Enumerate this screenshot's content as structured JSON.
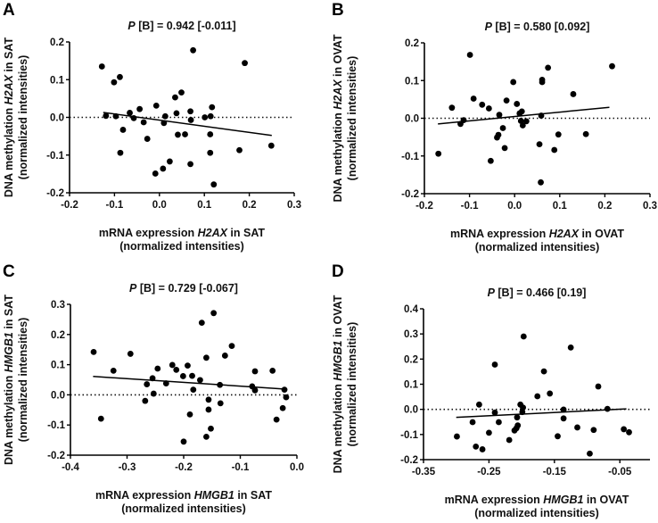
{
  "chart_data": [
    {
      "panel": "A",
      "type": "scatter",
      "title": {
        "p": "P",
        "rest": " [B] = 0.942 [-0.011]"
      },
      "xlabel": [
        "mRNA expression ",
        "H2AX",
        " in SAT"
      ],
      "xlabel2": "(normalized intensities)",
      "ylabel": [
        "DNA methylation ",
        "H2AX",
        " in SAT"
      ],
      "ylabel2": "(normalized intensities)",
      "xlim": [
        -0.2,
        0.3
      ],
      "ylim": [
        -0.2,
        0.2
      ],
      "xticks": [
        -0.2,
        -0.1,
        0.0,
        0.1,
        0.2,
        0.3
      ],
      "xtick_labels": [
        "-0.2",
        "-0.1",
        "0.0",
        "0.1",
        "0.2",
        "0.3"
      ],
      "yticks": [
        -0.2,
        -0.1,
        0.0,
        0.1,
        0.2
      ],
      "ytick_labels": [
        "-0.2",
        "-0.1",
        "0.0",
        "0.1",
        "0.2"
      ],
      "regression": [
        [
          -0.125,
          0.013
        ],
        [
          0.25,
          -0.048
        ]
      ],
      "points": [
        [
          -0.128,
          0.135
        ],
        [
          -0.101,
          0.093
        ],
        [
          -0.088,
          0.107
        ],
        [
          -0.119,
          0.004
        ],
        [
          -0.097,
          0.003
        ],
        [
          -0.066,
          0.012
        ],
        [
          -0.057,
          -0.002
        ],
        [
          -0.081,
          -0.033
        ],
        [
          -0.087,
          -0.094
        ],
        [
          -0.044,
          0.022
        ],
        [
          -0.035,
          -0.013
        ],
        [
          -0.027,
          -0.057
        ],
        [
          -0.007,
          0.031
        ],
        [
          0.013,
          0.003
        ],
        [
          0.01,
          -0.015
        ],
        [
          -0.009,
          -0.149
        ],
        [
          0.008,
          -0.136
        ],
        [
          0.023,
          -0.117
        ],
        [
          0.035,
          0.053
        ],
        [
          0.049,
          0.066
        ],
        [
          0.038,
          0.011
        ],
        [
          0.041,
          -0.046
        ],
        [
          0.057,
          -0.045
        ],
        [
          0.069,
          0.016
        ],
        [
          0.07,
          -0.007
        ],
        [
          0.069,
          -0.124
        ],
        [
          0.075,
          0.178
        ],
        [
          0.101,
          0.0
        ],
        [
          0.114,
          0.003
        ],
        [
          0.117,
          0.027
        ],
        [
          0.113,
          -0.045
        ],
        [
          0.113,
          -0.094
        ],
        [
          0.121,
          -0.178
        ],
        [
          0.178,
          -0.087
        ],
        [
          0.19,
          0.144
        ],
        [
          0.249,
          -0.075
        ]
      ]
    },
    {
      "panel": "B",
      "type": "scatter",
      "title": {
        "p": "P",
        "rest": " [B] = 0.580 [0.092]"
      },
      "xlabel": [
        "mRNA expression ",
        "H2AX",
        " in OVAT"
      ],
      "xlabel2": "(normalized intensities)",
      "ylabel": [
        "DNA methylation ",
        "H2AX",
        " in OVAT"
      ],
      "ylabel2": "(normalized intensities)",
      "xlim": [
        -0.2,
        0.3
      ],
      "ylim": [
        -0.2,
        0.2
      ],
      "xticks": [
        -0.2,
        -0.1,
        0.0,
        0.1,
        0.2,
        0.3
      ],
      "xtick_labels": [
        "-0.2",
        "-0.1",
        "0.0",
        "0.1",
        "0.2",
        "0.3"
      ],
      "yticks": [
        -0.2,
        -0.1,
        0.0,
        0.1,
        0.2
      ],
      "ytick_labels": [
        "-0.2",
        "-0.1",
        "0.0",
        "0.1",
        "0.2"
      ],
      "regression": [
        [
          -0.17,
          -0.015
        ],
        [
          0.21,
          0.029
        ]
      ],
      "points": [
        [
          -0.169,
          -0.094
        ],
        [
          -0.139,
          0.028
        ],
        [
          -0.12,
          -0.015
        ],
        [
          -0.113,
          -0.005
        ],
        [
          -0.099,
          0.168
        ],
        [
          -0.091,
          0.052
        ],
        [
          -0.072,
          0.036
        ],
        [
          -0.057,
          0.026
        ],
        [
          -0.053,
          -0.113
        ],
        [
          -0.034,
          0.009
        ],
        [
          -0.036,
          -0.044
        ],
        [
          -0.039,
          -0.051
        ],
        [
          -0.026,
          -0.026
        ],
        [
          -0.022,
          -0.079
        ],
        [
          -0.018,
          0.047
        ],
        [
          -0.003,
          0.096
        ],
        [
          0.005,
          0.038
        ],
        [
          0.011,
          0.013
        ],
        [
          0.016,
          0.018
        ],
        [
          0.014,
          -0.007
        ],
        [
          0.018,
          -0.019
        ],
        [
          0.026,
          -0.008
        ],
        [
          0.059,
          0.007
        ],
        [
          0.055,
          -0.069
        ],
        [
          0.058,
          -0.17
        ],
        [
          0.061,
          0.096
        ],
        [
          0.061,
          0.102
        ],
        [
          0.074,
          0.134
        ],
        [
          0.088,
          -0.084
        ],
        [
          0.097,
          -0.043
        ],
        [
          0.13,
          0.064
        ],
        [
          0.158,
          -0.042
        ],
        [
          0.216,
          0.138
        ]
      ]
    },
    {
      "panel": "C",
      "type": "scatter",
      "title": {
        "p": "P",
        "rest": " [B] = 0.729 [-0.067]"
      },
      "xlabel": [
        "mRNA expression ",
        "HMGB1",
        " in SAT"
      ],
      "xlabel2": "(normalized intensities)",
      "ylabel": [
        "DNA methylation ",
        "HMGB1",
        " in SAT"
      ],
      "ylabel2": "(normalized intensities)",
      "xlim": [
        -0.4,
        0.0
      ],
      "ylim": [
        -0.2,
        0.3
      ],
      "xticks": [
        -0.4,
        -0.3,
        -0.2,
        -0.1,
        0.0
      ],
      "xtick_labels": [
        "-0.4",
        "-0.3",
        "-0.2",
        "-0.1",
        "0.0"
      ],
      "yticks": [
        -0.2,
        -0.1,
        0.0,
        0.1,
        0.2,
        0.3
      ],
      "ytick_labels": [
        "-0.2",
        "-0.1",
        "0.0",
        "0.1",
        "0.2",
        "0.3"
      ],
      "regression": [
        [
          -0.36,
          0.061
        ],
        [
          -0.02,
          0.019
        ]
      ],
      "points": [
        [
          -0.359,
          0.142
        ],
        [
          -0.346,
          -0.079
        ],
        [
          -0.324,
          0.08
        ],
        [
          -0.294,
          0.136
        ],
        [
          -0.268,
          -0.02
        ],
        [
          -0.265,
          0.035
        ],
        [
          -0.255,
          0.055
        ],
        [
          -0.253,
          0.004
        ],
        [
          -0.246,
          0.087
        ],
        [
          -0.231,
          0.038
        ],
        [
          -0.22,
          0.099
        ],
        [
          -0.213,
          0.083
        ],
        [
          -0.201,
          0.062
        ],
        [
          -0.193,
          0.097
        ],
        [
          -0.2,
          -0.155
        ],
        [
          -0.189,
          -0.065
        ],
        [
          -0.185,
          0.063
        ],
        [
          -0.183,
          0.017
        ],
        [
          -0.171,
          0.049
        ],
        [
          -0.168,
          0.239
        ],
        [
          -0.16,
          0.123
        ],
        [
          -0.16,
          -0.139
        ],
        [
          -0.156,
          -0.016
        ],
        [
          -0.156,
          -0.049
        ],
        [
          -0.152,
          -0.112
        ],
        [
          -0.147,
          0.271
        ],
        [
          -0.136,
          0.033
        ],
        [
          -0.135,
          -0.028
        ],
        [
          -0.127,
          0.13
        ],
        [
          -0.115,
          0.162
        ],
        [
          -0.079,
          0.028
        ],
        [
          -0.074,
          0.078
        ],
        [
          -0.074,
          0.015
        ],
        [
          -0.043,
          0.08
        ],
        [
          -0.036,
          -0.082
        ],
        [
          -0.025,
          -0.044
        ],
        [
          -0.022,
          0.017
        ],
        [
          -0.019,
          -0.008
        ]
      ]
    },
    {
      "panel": "D",
      "type": "scatter",
      "title": {
        "p": "P",
        "rest": " [B] = 0.466 [0.19]"
      },
      "xlabel": [
        "mRNA expression ",
        "HMGB1",
        " in OVAT"
      ],
      "xlabel2": "(normalized intensities)",
      "ylabel": [
        "DNA methylation ",
        "HMGB1",
        " in OVAT"
      ],
      "ylabel2": "(normalized intensities)",
      "xlim": [
        -0.35,
        -0.004
      ],
      "ylim": [
        -0.2,
        0.4
      ],
      "xticks": [
        -0.35,
        -0.25,
        -0.15,
        -0.05
      ],
      "xtick_labels": [
        "-0.35",
        "-0.25",
        "-0.15",
        "-0.05"
      ],
      "yticks": [
        -0.2,
        -0.1,
        0.0,
        0.1,
        0.2,
        0.3,
        0.4
      ],
      "ytick_labels": [
        "-0.2",
        "-0.1",
        "0.0",
        "0.1",
        "0.2",
        "0.3",
        "0.4"
      ],
      "regression": [
        [
          -0.3,
          -0.032
        ],
        [
          -0.04,
          0.002
        ]
      ],
      "points": [
        [
          -0.299,
          -0.108
        ],
        [
          -0.275,
          -0.051
        ],
        [
          -0.27,
          -0.148
        ],
        [
          -0.265,
          0.019
        ],
        [
          -0.26,
          -0.159
        ],
        [
          -0.25,
          -0.093
        ],
        [
          -0.241,
          0.178
        ],
        [
          -0.241,
          -0.013
        ],
        [
          -0.235,
          -0.051
        ],
        [
          -0.219,
          -0.122
        ],
        [
          -0.211,
          -0.084
        ],
        [
          -0.207,
          -0.032
        ],
        [
          -0.206,
          -0.064
        ],
        [
          -0.208,
          -0.075
        ],
        [
          -0.202,
          0.019
        ],
        [
          -0.198,
          0.007
        ],
        [
          -0.199,
          -0.011
        ],
        [
          -0.197,
          0.29
        ],
        [
          -0.176,
          0.052
        ],
        [
          -0.166,
          0.151
        ],
        [
          -0.157,
          0.063
        ],
        [
          -0.145,
          -0.107
        ],
        [
          -0.136,
          -0.001
        ],
        [
          -0.136,
          -0.036
        ],
        [
          -0.125,
          0.246
        ],
        [
          -0.115,
          -0.072
        ],
        [
          -0.096,
          -0.176
        ],
        [
          -0.09,
          -0.082
        ],
        [
          -0.083,
          0.091
        ],
        [
          -0.069,
          0.002
        ],
        [
          -0.044,
          -0.079
        ],
        [
          -0.036,
          -0.091
        ]
      ]
    }
  ]
}
